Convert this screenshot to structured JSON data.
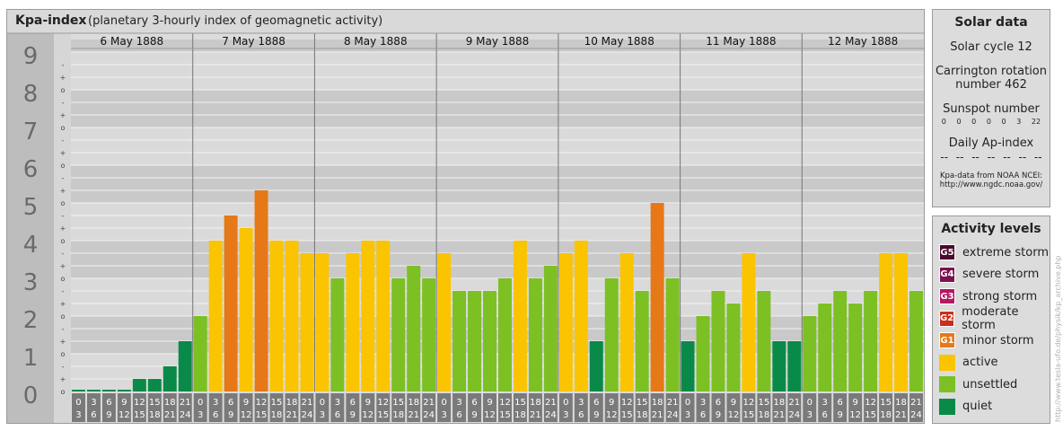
{
  "header": {
    "title": "Kpa-index",
    "subtitle": "(planetary 3-hourly index of geomagnetic activity)"
  },
  "chart_data": {
    "type": "bar",
    "title": "Kpa-index",
    "subtitle": "(planetary 3-hourly index of geomagnetic activity)",
    "ylim": [
      0,
      9
    ],
    "y_tick_labels": [
      "0",
      "1",
      "2",
      "3",
      "4",
      "5",
      "6",
      "7",
      "8",
      "9"
    ],
    "y_subticks": [
      "o",
      "+",
      "-"
    ],
    "days": [
      "6 May 1888",
      "7 May 1888",
      "8 May 1888",
      "9 May 1888",
      "10 May 1888",
      "11 May 1888",
      "12 May 1888"
    ],
    "interval_labels": [
      {
        "start": "0",
        "end": "3"
      },
      {
        "start": "3",
        "end": "6"
      },
      {
        "start": "6",
        "end": "9"
      },
      {
        "start": "9",
        "end": "12"
      },
      {
        "start": "12",
        "end": "15"
      },
      {
        "start": "15",
        "end": "18"
      },
      {
        "start": "18",
        "end": "21"
      },
      {
        "start": "21",
        "end": "24"
      }
    ],
    "values": [
      [
        0,
        0,
        0,
        0,
        0.333,
        0.333,
        0.667,
        1.333
      ],
      [
        2,
        4,
        4.667,
        4.333,
        5.333,
        4,
        4,
        3.667
      ],
      [
        3.667,
        3,
        3.667,
        4,
        4,
        3,
        3.333,
        3
      ],
      [
        3.667,
        2.667,
        2.667,
        2.667,
        3,
        4,
        3,
        3.333
      ],
      [
        3.667,
        4,
        1.333,
        3,
        3.667,
        2.667,
        5,
        3
      ],
      [
        1.333,
        2,
        2.667,
        2.333,
        3.667,
        2.667,
        1.333,
        1.333
      ],
      [
        2,
        2.333,
        2.667,
        2.333,
        2.667,
        3.667,
        3.667,
        2.667
      ]
    ],
    "legend_placement": "right",
    "grid": true
  },
  "solar": {
    "title": "Solar data",
    "cycle": "Solar cycle 12",
    "rotation_line1": "Carrington rotation",
    "rotation_line2": "number 462",
    "sunspot_title": "Sunspot number",
    "sunspot_values": [
      "0",
      "0",
      "0",
      "0",
      "0",
      "3",
      "22"
    ],
    "ap_title": "Daily Ap-index",
    "ap_values": [
      "--",
      "--",
      "--",
      "--",
      "--",
      "--",
      "--"
    ],
    "source_line1": "Kpa-data from NOAA NCEI:",
    "source_line2": "http://www.ngdc.noaa.gov/"
  },
  "levels": {
    "title": "Activity levels",
    "items": [
      {
        "badge": "G5",
        "label": "extreme storm",
        "color": "#4b0a2a"
      },
      {
        "badge": "G4",
        "label": "severe storm",
        "color": "#7c1250"
      },
      {
        "badge": "G3",
        "label": "strong storm",
        "color": "#b61663"
      },
      {
        "badge": "G2",
        "label": "moderate storm",
        "color": "#cc2e1b"
      },
      {
        "badge": "G1",
        "label": "minor storm",
        "color": "#e67818"
      },
      {
        "badge": "",
        "label": "active",
        "color": "#fbc400"
      },
      {
        "badge": "",
        "label": "unsettled",
        "color": "#7cc024"
      },
      {
        "badge": "",
        "label": "quiet",
        "color": "#0a8a48"
      }
    ]
  },
  "colors": {
    "quiet": "#0a8a48",
    "unsettled": "#7cc024",
    "active": "#fbc400",
    "minor_storm": "#e67818",
    "moderate_storm": "#cc2e1b"
  },
  "watermark": "http://www.tesla-ufo.de/physik/kp_archive.php"
}
